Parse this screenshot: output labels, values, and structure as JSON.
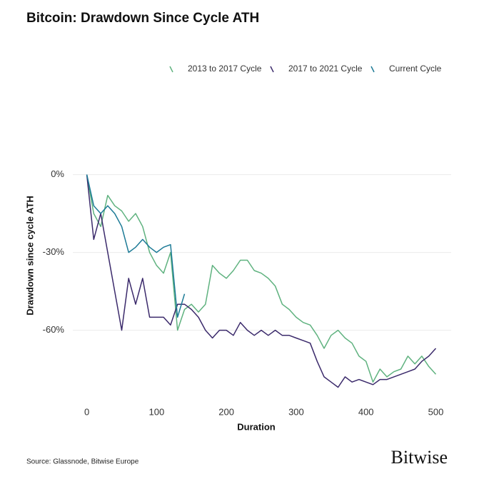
{
  "chart_data": {
    "type": "line",
    "title": "Bitcoin: Drawdown Since Cycle ATH",
    "x_label": "Duration",
    "y_label": "Drawdown since cycle ATH",
    "source": "Source: Glassnode, Bitwise Europe",
    "brand": "Bitwise",
    "x": [
      0,
      10,
      20,
      30,
      40,
      50,
      60,
      70,
      80,
      90,
      100,
      110,
      120,
      130,
      140,
      150,
      160,
      170,
      180,
      190,
      200,
      210,
      220,
      230,
      240,
      250,
      260,
      270,
      280,
      290,
      300,
      310,
      320,
      330,
      340,
      350,
      360,
      370,
      380,
      390,
      400,
      410,
      420,
      430,
      440,
      450,
      460,
      470,
      480,
      490,
      500
    ],
    "series": [
      {
        "name": "2013 to 2017 Cycle",
        "color": "#5fb27f",
        "values": [
          0,
          -15,
          -20,
          -8,
          -12,
          -14,
          -18,
          -15,
          -20,
          -30,
          -35,
          -38,
          -30,
          -60,
          -52,
          -50,
          -53,
          -50,
          -35,
          -38,
          -40,
          -37,
          -33,
          -33,
          -37,
          -38,
          -40,
          -43,
          -50,
          -52,
          -55,
          -57,
          -58,
          -62,
          -67,
          -62,
          -60,
          -63,
          -65,
          -70,
          -72,
          -80,
          -75,
          -78,
          -76,
          -75,
          -70,
          -73,
          -70,
          -74,
          -77
        ]
      },
      {
        "name": "2017 to 2021 Cycle",
        "color": "#3b2a6b",
        "values": [
          0,
          -25,
          -15,
          -30,
          -45,
          -60,
          -40,
          -50,
          -40,
          -55,
          -55,
          -55,
          -58,
          -50,
          -50,
          -52,
          -55,
          -60,
          -63,
          -60,
          -60,
          -62,
          -57,
          -60,
          -62,
          -60,
          -62,
          -60,
          -62,
          -62,
          -63,
          -64,
          -65,
          -72,
          -78,
          -80,
          -82,
          -78,
          -80,
          -79,
          -80,
          -81,
          -79,
          -79,
          -78,
          -77,
          -76,
          -75,
          -72,
          -70,
          -67
        ]
      },
      {
        "name": "Current Cycle",
        "color": "#1c7a96",
        "values": [
          0,
          -12,
          -15,
          -12,
          -15,
          -20,
          -30,
          -28,
          -25,
          -28,
          -30,
          -28,
          -27,
          -55,
          -46,
          null,
          null,
          null,
          null,
          null,
          null,
          null,
          null,
          null,
          null,
          null,
          null,
          null,
          null,
          null,
          null,
          null,
          null,
          null,
          null,
          null,
          null,
          null,
          null,
          null,
          null,
          null,
          null,
          null,
          null,
          null,
          null,
          null,
          null,
          null,
          null
        ]
      }
    ],
    "xlim": [
      -20,
      522
    ],
    "ylim": [
      -86,
      20
    ],
    "xticks": [
      0,
      100,
      200,
      300,
      400,
      500
    ],
    "yticks": [
      {
        "value": 0,
        "label": "0%"
      },
      {
        "value": -30,
        "label": "-30%"
      },
      {
        "value": -60,
        "label": "-60%"
      }
    ],
    "grid": true,
    "legend": "top-right"
  }
}
